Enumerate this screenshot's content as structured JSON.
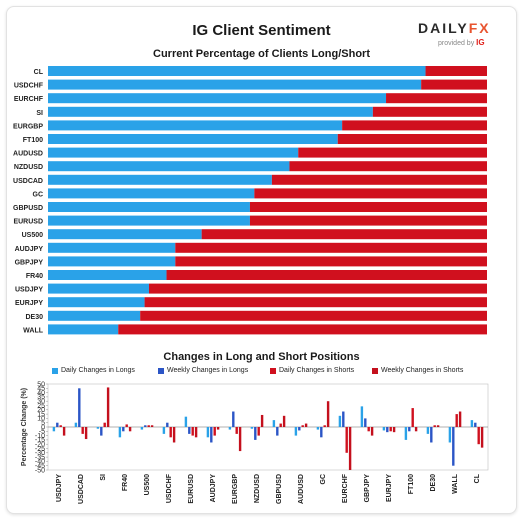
{
  "header": {
    "title": "IG Client Sentiment",
    "brand_main": "DAILY",
    "brand_fx": "FX",
    "brand_sub": "provided by",
    "brand_ig": "IG"
  },
  "colors": {
    "long": "#2aa2e8",
    "short": "#d0101e",
    "weekly_long": "#2b55c6",
    "weekly_short": "#c4101d"
  },
  "chart_data": [
    {
      "type": "bar",
      "orientation": "horizontal",
      "stacked": true,
      "title": "Current Percentage of Clients Long/Short",
      "categories": [
        "CL",
        "USDCHF",
        "EURCHF",
        "SI",
        "EURGBP",
        "FT100",
        "AUDUSD",
        "NZDUSD",
        "USDCAD",
        "GC",
        "GBPUSD",
        "EURUSD",
        "US500",
        "AUDJPY",
        "GBPJPY",
        "FR40",
        "USDJPY",
        "EURJPY",
        "DE30",
        "WALL"
      ],
      "series": [
        {
          "name": "Long",
          "values": [
            86,
            85,
            77,
            74,
            67,
            66,
            57,
            55,
            51,
            47,
            46,
            46,
            35,
            29,
            29,
            27,
            23,
            22,
            21,
            16
          ]
        },
        {
          "name": "Short",
          "values": [
            14,
            15,
            23,
            26,
            33,
            34,
            43,
            45,
            49,
            53,
            54,
            54,
            65,
            71,
            71,
            73,
            77,
            78,
            79,
            84
          ]
        }
      ],
      "xlim": [
        0,
        100
      ]
    },
    {
      "type": "bar",
      "title": "Changes in Long and Short Positions",
      "ylabel": "Percentage Change (%)",
      "ylim": [
        -50,
        50
      ],
      "yticks": [
        50,
        45,
        40,
        35,
        30,
        25,
        20,
        15,
        10,
        5,
        0,
        -5,
        -10,
        -15,
        -20,
        -25,
        -30,
        -35,
        -40,
        -45,
        -50
      ],
      "categories": [
        "USDJPY",
        "USDCAD",
        "SI",
        "FR40",
        "US500",
        "USDCHF",
        "EURUSD",
        "AUDJPY",
        "EURGBP",
        "NZDUSD",
        "GBPUSD",
        "AUDUSD",
        "GC",
        "EURCHF",
        "GBPJPY",
        "EURJPY",
        "FT100",
        "DE30",
        "WALL",
        "CL"
      ],
      "series": [
        {
          "name": "Daily Changes in Longs",
          "values": [
            -5,
            5,
            -2,
            -12,
            -3,
            -8,
            12,
            -12,
            -3,
            -2,
            8,
            -10,
            -3,
            13,
            24,
            -4,
            -15,
            -8,
            -18,
            8
          ]
        },
        {
          "name": "Weekly Changes in Longs",
          "values": [
            5,
            45,
            -10,
            -5,
            2,
            5,
            -8,
            -18,
            18,
            -15,
            -10,
            -4,
            -12,
            18,
            10,
            -6,
            -5,
            -18,
            -45,
            5
          ]
        },
        {
          "name": "Daily Changes in Shorts",
          "values": [
            2,
            -8,
            5,
            3,
            2,
            -12,
            -10,
            -10,
            -8,
            -10,
            4,
            2,
            2,
            -30,
            -5,
            -5,
            22,
            2,
            15,
            -20
          ]
        },
        {
          "name": "Weekly Changes in Shorts",
          "values": [
            -10,
            -14,
            46,
            -5,
            2,
            -18,
            -12,
            -3,
            -28,
            14,
            13,
            4,
            30,
            -50,
            -10,
            -6,
            -5,
            2,
            18,
            -24
          ]
        }
      ]
    }
  ]
}
